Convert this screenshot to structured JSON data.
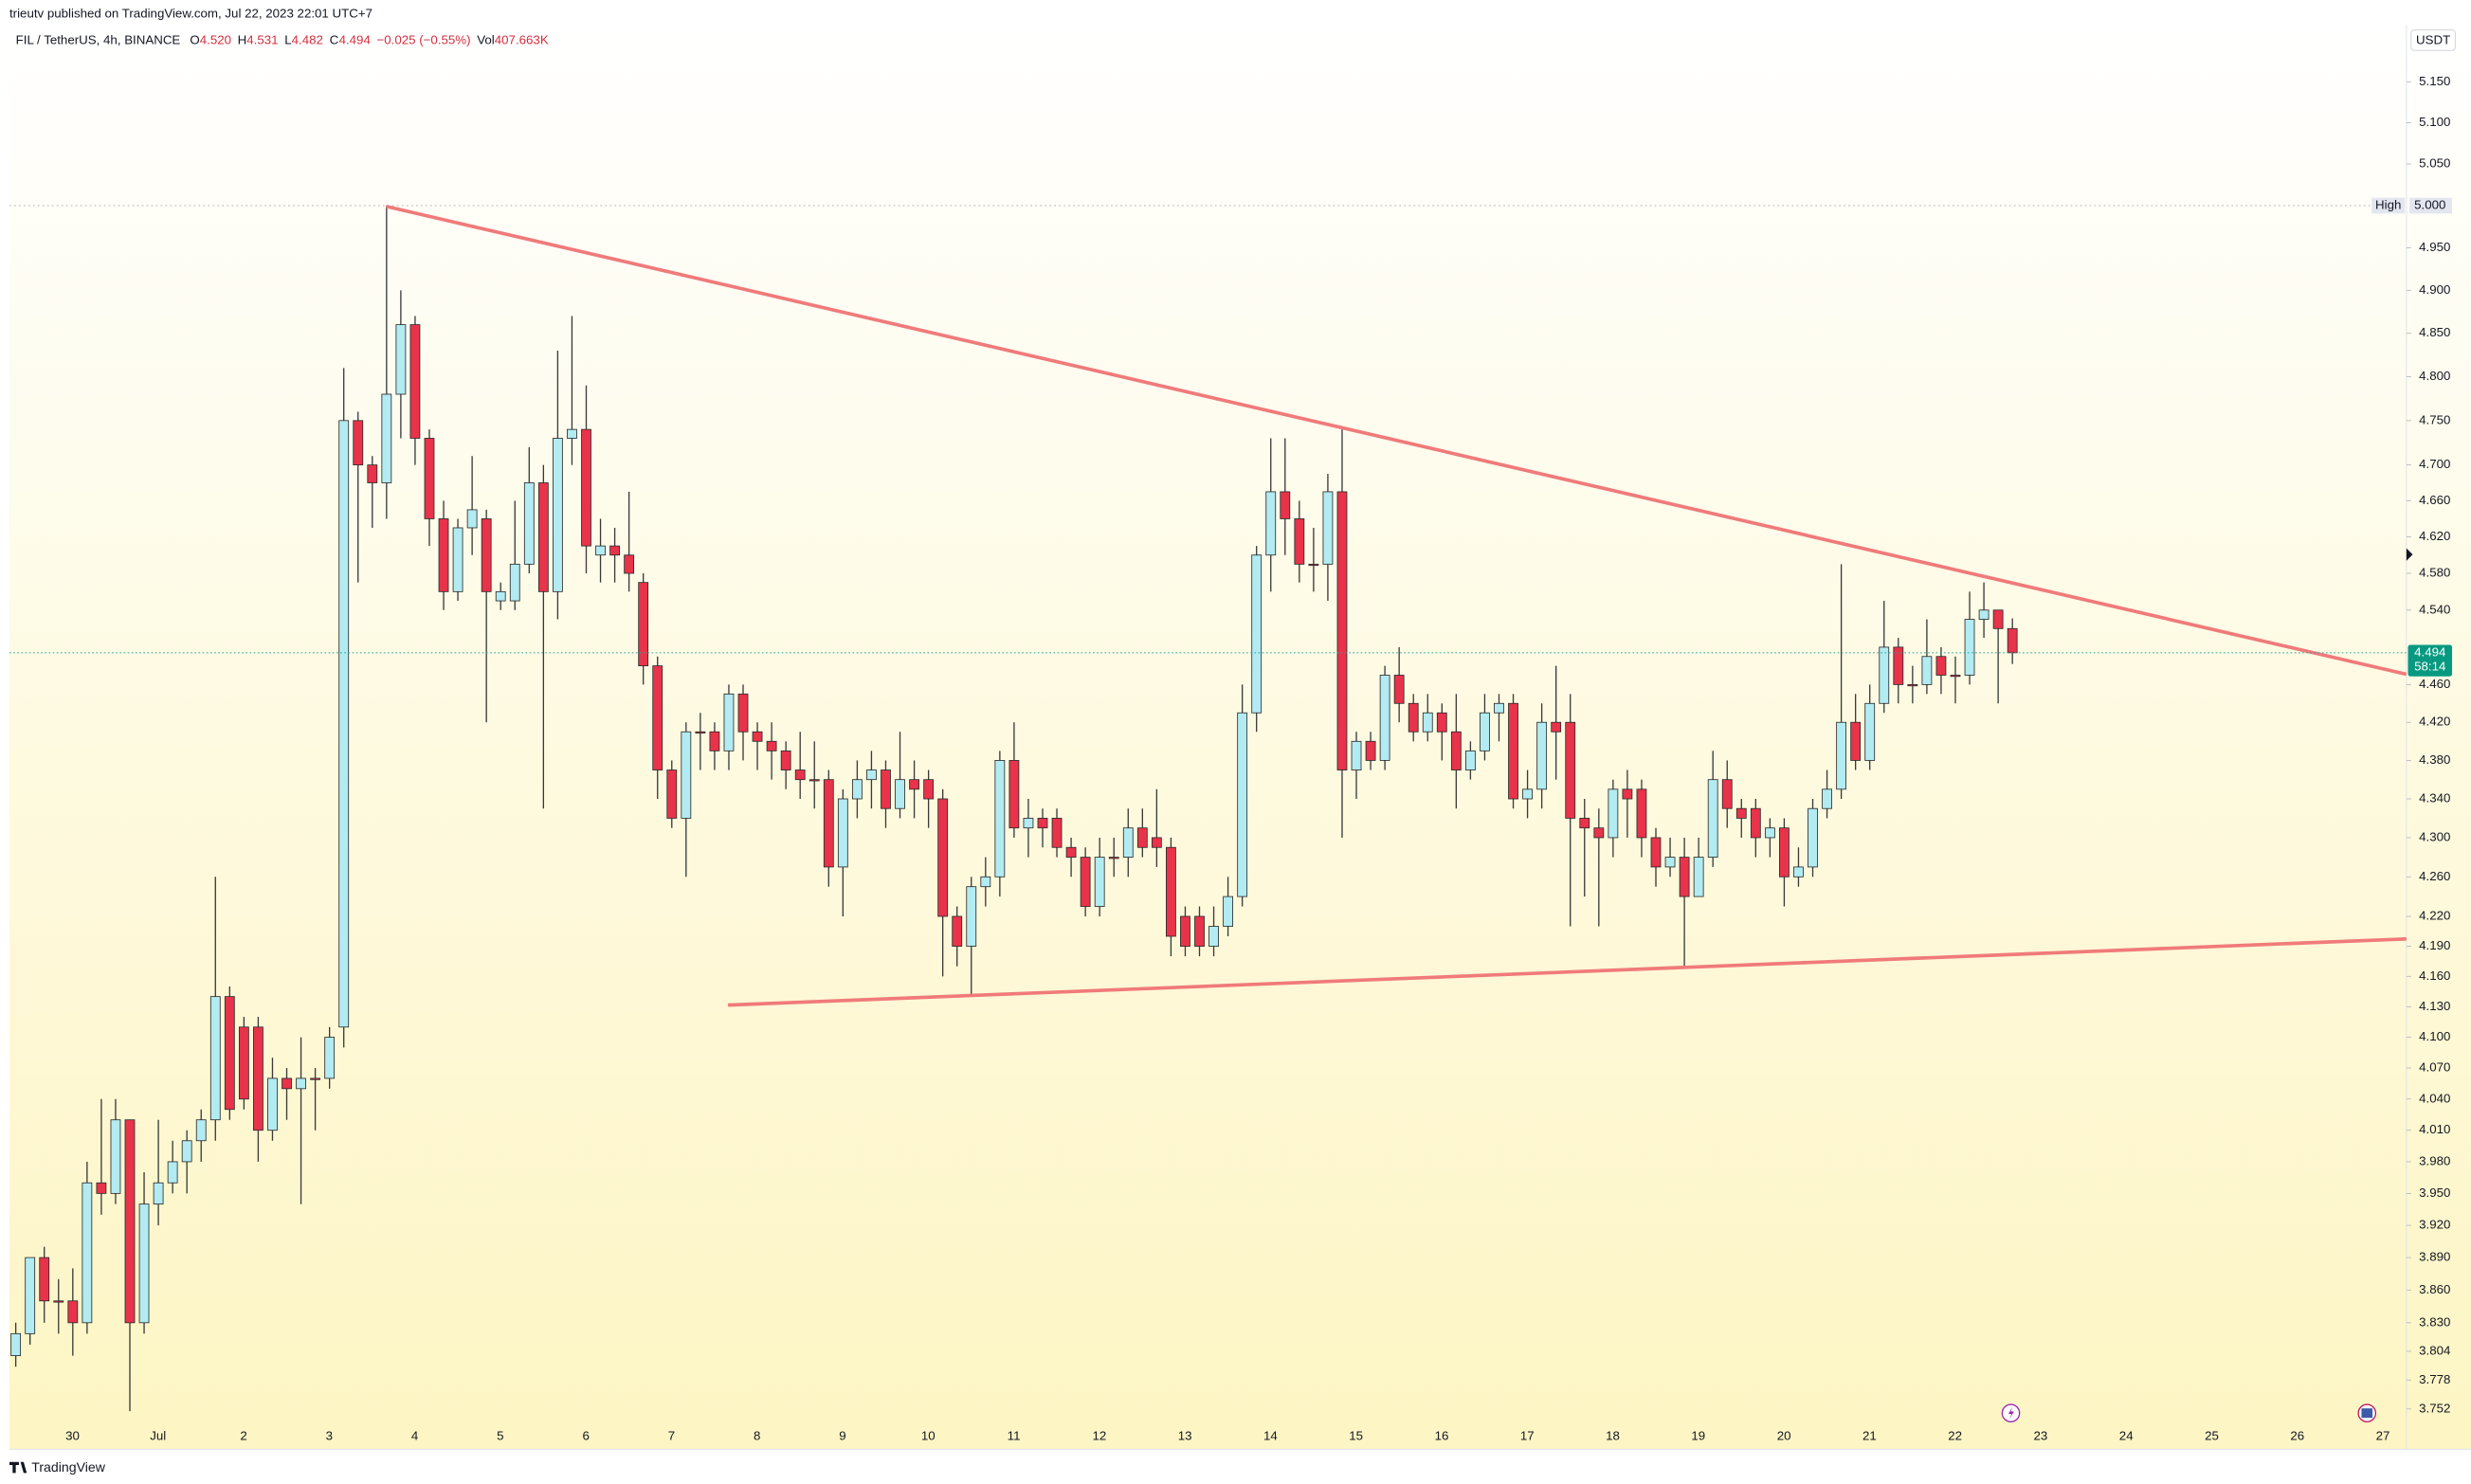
{
  "published": "trieutv published on TradingView.com, Jul 22, 2023 22:01 UTC+7",
  "chart_data": {
    "type": "candlestick",
    "symbol": "FIL / TetherUS, 4h, BINANCE",
    "legend_items": [
      {
        "label": "O",
        "value": "4.520"
      },
      {
        "label": "H",
        "value": "4.531"
      },
      {
        "label": "L",
        "value": "4.482"
      },
      {
        "label": "C",
        "value": "4.494"
      },
      {
        "label": "",
        "value": "−0.025 (−0.55%)"
      },
      {
        "label": "Vol",
        "value": "407.663K"
      }
    ],
    "currency": "USDT",
    "up_color": "#b2ebf2",
    "down_color": "#e8334a",
    "log_scale": true,
    "ylim": [
      3.716,
      5.22
    ],
    "yticks": [
      {
        "value": 5.15,
        "label": "5.150"
      },
      {
        "value": 5.1,
        "label": "5.100"
      },
      {
        "value": 5.05,
        "label": "5.050"
      },
      {
        "value": 4.95,
        "label": "4.950"
      },
      {
        "value": 4.9,
        "label": "4.900"
      },
      {
        "value": 4.85,
        "label": "4.850"
      },
      {
        "value": 4.8,
        "label": "4.800"
      },
      {
        "value": 4.75,
        "label": "4.750"
      },
      {
        "value": 4.7,
        "label": "4.700"
      },
      {
        "value": 4.66,
        "label": "4.660"
      },
      {
        "value": 4.62,
        "label": "4.620"
      },
      {
        "value": 4.58,
        "label": "4.580"
      },
      {
        "value": 4.54,
        "label": "4.540"
      },
      {
        "value": 4.46,
        "label": "4.460"
      },
      {
        "value": 4.42,
        "label": "4.420"
      },
      {
        "value": 4.38,
        "label": "4.380"
      },
      {
        "value": 4.34,
        "label": "4.340"
      },
      {
        "value": 4.3,
        "label": "4.300"
      },
      {
        "value": 4.26,
        "label": "4.260"
      },
      {
        "value": 4.22,
        "label": "4.220"
      },
      {
        "value": 4.19,
        "label": "4.190"
      },
      {
        "value": 4.16,
        "label": "4.160"
      },
      {
        "value": 4.13,
        "label": "4.130"
      },
      {
        "value": 4.1,
        "label": "4.100"
      },
      {
        "value": 4.07,
        "label": "4.070"
      },
      {
        "value": 4.04,
        "label": "4.040"
      },
      {
        "value": 4.01,
        "label": "4.010"
      },
      {
        "value": 3.98,
        "label": "3.980"
      },
      {
        "value": 3.95,
        "label": "3.950"
      },
      {
        "value": 3.92,
        "label": "3.920"
      },
      {
        "value": 3.89,
        "label": "3.890"
      },
      {
        "value": 3.86,
        "label": "3.860"
      },
      {
        "value": 3.83,
        "label": "3.830"
      },
      3.804,
      3.778,
      3.752
    ],
    "high_marker": {
      "label": "High",
      "value": 5.0,
      "value_label": "5.000"
    },
    "price_marker": {
      "value": 4.494,
      "label": "4.494",
      "countdown": "58:14"
    },
    "xtick_labels": [
      "30",
      "Jul",
      "2",
      "3",
      "4",
      "5",
      "6",
      "7",
      "8",
      "9",
      "10",
      "11",
      "12",
      "13",
      "14",
      "15",
      "16",
      "17",
      "18",
      "19",
      "20",
      "21",
      "22",
      "23",
      "24",
      "25",
      "26",
      "27"
    ],
    "candles": [
      [
        3.8,
        3.83,
        3.79,
        3.82
      ],
      [
        3.82,
        3.89,
        3.81,
        3.89
      ],
      [
        3.89,
        3.9,
        3.83,
        3.85
      ],
      [
        3.85,
        3.87,
        3.82,
        3.85
      ],
      [
        3.85,
        3.88,
        3.8,
        3.83
      ],
      [
        3.83,
        3.98,
        3.82,
        3.96
      ],
      [
        3.96,
        4.04,
        3.93,
        3.95
      ],
      [
        3.95,
        4.04,
        3.94,
        4.02
      ],
      [
        4.02,
        4.02,
        3.75,
        3.83
      ],
      [
        3.83,
        3.97,
        3.82,
        3.94
      ],
      [
        3.94,
        4.02,
        3.92,
        3.96
      ],
      [
        3.96,
        4.0,
        3.95,
        3.98
      ],
      [
        3.98,
        4.01,
        3.95,
        4.0
      ],
      [
        4.0,
        4.03,
        3.98,
        4.02
      ],
      [
        4.02,
        4.26,
        4.0,
        4.14
      ],
      [
        4.14,
        4.15,
        4.02,
        4.03
      ],
      [
        4.11,
        4.12,
        4.03,
        4.04
      ],
      [
        4.11,
        4.12,
        3.98,
        4.01
      ],
      [
        4.01,
        4.08,
        4.0,
        4.06
      ],
      [
        4.06,
        4.07,
        4.02,
        4.05
      ],
      [
        4.05,
        4.1,
        3.94,
        4.06
      ],
      [
        4.06,
        4.07,
        4.01,
        4.06
      ],
      [
        4.06,
        4.11,
        4.05,
        4.1
      ],
      [
        4.11,
        4.81,
        4.09,
        4.75
      ],
      [
        4.75,
        4.76,
        4.57,
        4.7
      ],
      [
        4.7,
        4.71,
        4.63,
        4.68
      ],
      [
        4.68,
        5.0,
        4.64,
        4.78
      ],
      [
        4.78,
        4.9,
        4.73,
        4.86
      ],
      [
        4.86,
        4.87,
        4.7,
        4.73
      ],
      [
        4.73,
        4.74,
        4.61,
        4.64
      ],
      [
        4.64,
        4.66,
        4.54,
        4.56
      ],
      [
        4.56,
        4.64,
        4.55,
        4.63
      ],
      [
        4.63,
        4.71,
        4.6,
        4.65
      ],
      [
        4.64,
        4.65,
        4.42,
        4.56
      ],
      [
        4.55,
        4.57,
        4.54,
        4.56
      ],
      [
        4.55,
        4.66,
        4.54,
        4.59
      ],
      [
        4.59,
        4.72,
        4.58,
        4.68
      ],
      [
        4.68,
        4.7,
        4.33,
        4.56
      ],
      [
        4.56,
        4.83,
        4.53,
        4.73
      ],
      [
        4.73,
        4.87,
        4.7,
        4.74
      ],
      [
        4.74,
        4.79,
        4.58,
        4.61
      ],
      [
        4.6,
        4.64,
        4.57,
        4.61
      ],
      [
        4.61,
        4.63,
        4.57,
        4.6
      ],
      [
        4.6,
        4.67,
        4.56,
        4.58
      ],
      [
        4.57,
        4.58,
        4.46,
        4.48
      ],
      [
        4.48,
        4.49,
        4.34,
        4.37
      ],
      [
        4.37,
        4.38,
        4.31,
        4.32
      ],
      [
        4.32,
        4.42,
        4.26,
        4.41
      ],
      [
        4.41,
        4.43,
        4.37,
        4.41
      ],
      [
        4.41,
        4.42,
        4.37,
        4.39
      ],
      [
        4.39,
        4.46,
        4.37,
        4.45
      ],
      [
        4.45,
        4.46,
        4.38,
        4.41
      ],
      [
        4.41,
        4.42,
        4.37,
        4.4
      ],
      [
        4.4,
        4.42,
        4.36,
        4.39
      ],
      [
        4.39,
        4.4,
        4.35,
        4.37
      ],
      [
        4.37,
        4.41,
        4.34,
        4.36
      ],
      [
        4.36,
        4.4,
        4.33,
        4.36
      ],
      [
        4.36,
        4.37,
        4.25,
        4.27
      ],
      [
        4.27,
        4.35,
        4.22,
        4.34
      ],
      [
        4.34,
        4.38,
        4.32,
        4.36
      ],
      [
        4.36,
        4.39,
        4.33,
        4.37
      ],
      [
        4.37,
        4.38,
        4.31,
        4.33
      ],
      [
        4.33,
        4.41,
        4.32,
        4.36
      ],
      [
        4.36,
        4.38,
        4.32,
        4.35
      ],
      [
        4.36,
        4.37,
        4.31,
        4.34
      ],
      [
        4.34,
        4.35,
        4.16,
        4.22
      ],
      [
        4.22,
        4.23,
        4.17,
        4.19
      ],
      [
        4.19,
        4.26,
        4.14,
        4.25
      ],
      [
        4.25,
        4.28,
        4.23,
        4.26
      ],
      [
        4.26,
        4.39,
        4.24,
        4.38
      ],
      [
        4.38,
        4.42,
        4.3,
        4.31
      ],
      [
        4.31,
        4.34,
        4.28,
        4.32
      ],
      [
        4.32,
        4.33,
        4.29,
        4.31
      ],
      [
        4.32,
        4.33,
        4.28,
        4.29
      ],
      [
        4.29,
        4.3,
        4.26,
        4.28
      ],
      [
        4.28,
        4.29,
        4.22,
        4.23
      ],
      [
        4.23,
        4.3,
        4.22,
        4.28
      ],
      [
        4.28,
        4.3,
        4.26,
        4.28
      ],
      [
        4.28,
        4.33,
        4.26,
        4.31
      ],
      [
        4.31,
        4.33,
        4.28,
        4.29
      ],
      [
        4.3,
        4.35,
        4.27,
        4.29
      ],
      [
        4.29,
        4.3,
        4.18,
        4.2
      ],
      [
        4.22,
        4.23,
        4.18,
        4.19
      ],
      [
        4.22,
        4.23,
        4.18,
        4.19
      ],
      [
        4.19,
        4.23,
        4.18,
        4.21
      ],
      [
        4.21,
        4.26,
        4.2,
        4.24
      ],
      [
        4.24,
        4.46,
        4.23,
        4.43
      ],
      [
        4.43,
        4.61,
        4.41,
        4.6
      ],
      [
        4.6,
        4.73,
        4.56,
        4.67
      ],
      [
        4.67,
        4.73,
        4.6,
        4.64
      ],
      [
        4.64,
        4.66,
        4.57,
        4.59
      ],
      [
        4.59,
        4.63,
        4.56,
        4.59
      ],
      [
        4.59,
        4.69,
        4.55,
        4.67
      ],
      [
        4.67,
        4.74,
        4.3,
        4.37
      ],
      [
        4.37,
        4.41,
        4.34,
        4.4
      ],
      [
        4.4,
        4.41,
        4.37,
        4.38
      ],
      [
        4.38,
        4.48,
        4.37,
        4.47
      ],
      [
        4.47,
        4.5,
        4.42,
        4.44
      ],
      [
        4.44,
        4.45,
        4.4,
        4.41
      ],
      [
        4.41,
        4.45,
        4.4,
        4.43
      ],
      [
        4.43,
        4.44,
        4.38,
        4.41
      ],
      [
        4.41,
        4.45,
        4.33,
        4.37
      ],
      [
        4.37,
        4.4,
        4.36,
        4.39
      ],
      [
        4.39,
        4.45,
        4.38,
        4.43
      ],
      [
        4.43,
        4.45,
        4.4,
        4.44
      ],
      [
        4.44,
        4.45,
        4.33,
        4.34
      ],
      [
        4.34,
        4.37,
        4.32,
        4.35
      ],
      [
        4.35,
        4.44,
        4.33,
        4.42
      ],
      [
        4.42,
        4.48,
        4.36,
        4.41
      ],
      [
        4.42,
        4.45,
        4.21,
        4.32
      ],
      [
        4.32,
        4.34,
        4.24,
        4.31
      ],
      [
        4.31,
        4.33,
        4.21,
        4.3
      ],
      [
        4.3,
        4.36,
        4.28,
        4.35
      ],
      [
        4.35,
        4.37,
        4.3,
        4.34
      ],
      [
        4.35,
        4.36,
        4.28,
        4.3
      ],
      [
        4.3,
        4.31,
        4.25,
        4.27
      ],
      [
        4.27,
        4.3,
        4.26,
        4.28
      ],
      [
        4.28,
        4.3,
        4.17,
        4.24
      ],
      [
        4.24,
        4.3,
        4.24,
        4.28
      ],
      [
        4.28,
        4.39,
        4.27,
        4.36
      ],
      [
        4.36,
        4.38,
        4.31,
        4.33
      ],
      [
        4.33,
        4.34,
        4.3,
        4.32
      ],
      [
        4.33,
        4.34,
        4.28,
        4.3
      ],
      [
        4.3,
        4.32,
        4.28,
        4.31
      ],
      [
        4.31,
        4.32,
        4.23,
        4.26
      ],
      [
        4.26,
        4.29,
        4.25,
        4.27
      ],
      [
        4.27,
        4.34,
        4.26,
        4.33
      ],
      [
        4.33,
        4.37,
        4.32,
        4.35
      ],
      [
        4.35,
        4.59,
        4.34,
        4.42
      ],
      [
        4.42,
        4.45,
        4.37,
        4.38
      ],
      [
        4.38,
        4.46,
        4.37,
        4.44
      ],
      [
        4.44,
        4.55,
        4.43,
        4.5
      ],
      [
        4.5,
        4.51,
        4.44,
        4.46
      ],
      [
        4.46,
        4.48,
        4.44,
        4.46
      ],
      [
        4.46,
        4.53,
        4.45,
        4.49
      ],
      [
        4.49,
        4.5,
        4.45,
        4.47
      ],
      [
        4.47,
        4.49,
        4.44,
        4.47
      ],
      [
        4.47,
        4.56,
        4.46,
        4.53
      ],
      [
        4.53,
        4.57,
        4.51,
        4.54
      ],
      [
        4.54,
        4.54,
        4.44,
        4.52
      ],
      [
        4.52,
        4.531,
        4.482,
        4.494
      ]
    ]
  },
  "footer": "TradingView"
}
